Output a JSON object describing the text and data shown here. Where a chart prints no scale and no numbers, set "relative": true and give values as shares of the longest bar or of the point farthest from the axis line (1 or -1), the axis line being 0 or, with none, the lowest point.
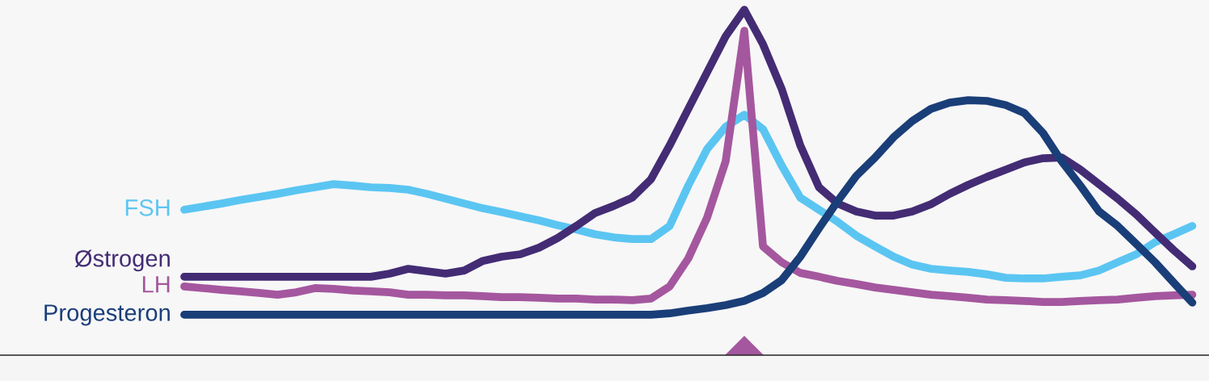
{
  "chart_data": {
    "type": "line",
    "relative": true,
    "legend": false,
    "marker": "none",
    "line_style": "solid",
    "categories": [
      null,
      null,
      null,
      null,
      null,
      null,
      null,
      null,
      null,
      null,
      null,
      null,
      null,
      null,
      null,
      null,
      null,
      null,
      null,
      null,
      null,
      null,
      null,
      null,
      null,
      null,
      null,
      null,
      null,
      null,
      null,
      null,
      null,
      null,
      null,
      null,
      null,
      null,
      null,
      null,
      null,
      null,
      null,
      null,
      null,
      null,
      null,
      null,
      null,
      null,
      null,
      null,
      null,
      null,
      null
    ],
    "series": [
      {
        "name": "FSH",
        "color": "#5bc5f2",
        "values": [
          0.421,
          0.43,
          0.439,
          0.449,
          0.458,
          0.467,
          0.477,
          0.486,
          0.495,
          0.491,
          0.486,
          0.484,
          0.479,
          0.467,
          0.453,
          0.439,
          0.425,
          0.414,
          0.402,
          0.39,
          0.376,
          0.364,
          0.35,
          0.341,
          0.336,
          0.336,
          0.374,
          0.491,
          0.596,
          0.661,
          0.696,
          0.654,
          0.549,
          0.456,
          0.421,
          0.386,
          0.346,
          0.315,
          0.285,
          0.262,
          0.25,
          0.245,
          0.241,
          0.234,
          0.224,
          0.222,
          0.222,
          0.227,
          0.231,
          0.245,
          0.269,
          0.292,
          0.327,
          0.35,
          0.374
        ]
      },
      {
        "name": "Østrogen",
        "color": "#432c74",
        "values": [
          0.227,
          0.227,
          0.227,
          0.227,
          0.227,
          0.227,
          0.227,
          0.227,
          0.227,
          0.227,
          0.227,
          0.236,
          0.25,
          0.243,
          0.236,
          0.245,
          0.273,
          0.285,
          0.292,
          0.311,
          0.339,
          0.374,
          0.411,
          0.432,
          0.456,
          0.509,
          0.607,
          0.713,
          0.818,
          0.923,
          1.0,
          0.9,
          0.771,
          0.607,
          0.486,
          0.439,
          0.416,
          0.404,
          0.404,
          0.416,
          0.437,
          0.467,
          0.493,
          0.516,
          0.537,
          0.558,
          0.57,
          0.572,
          0.537,
          0.495,
          0.453,
          0.407,
          0.355,
          0.304,
          0.257
        ]
      },
      {
        "name": "LH",
        "color": "#a4579e",
        "values": [
          0.199,
          0.194,
          0.189,
          0.185,
          0.18,
          0.175,
          0.182,
          0.194,
          0.192,
          0.187,
          0.185,
          0.182,
          0.175,
          0.175,
          0.173,
          0.173,
          0.171,
          0.168,
          0.168,
          0.166,
          0.164,
          0.164,
          0.161,
          0.161,
          0.159,
          0.164,
          0.199,
          0.28,
          0.397,
          0.561,
          0.939,
          0.315,
          0.269,
          0.238,
          0.227,
          0.215,
          0.206,
          0.196,
          0.189,
          0.182,
          0.175,
          0.171,
          0.166,
          0.161,
          0.159,
          0.157,
          0.154,
          0.154,
          0.157,
          0.159,
          0.161,
          0.166,
          0.171,
          0.173,
          0.175
        ]
      },
      {
        "name": "Progesteron",
        "color": "#1a3e78",
        "values": [
          0.117,
          0.117,
          0.117,
          0.117,
          0.117,
          0.117,
          0.117,
          0.117,
          0.117,
          0.117,
          0.117,
          0.117,
          0.117,
          0.117,
          0.117,
          0.117,
          0.117,
          0.117,
          0.117,
          0.117,
          0.117,
          0.117,
          0.117,
          0.117,
          0.117,
          0.117,
          0.121,
          0.129,
          0.136,
          0.145,
          0.157,
          0.18,
          0.217,
          0.285,
          0.367,
          0.446,
          0.519,
          0.572,
          0.631,
          0.678,
          0.713,
          0.731,
          0.738,
          0.736,
          0.724,
          0.701,
          0.643,
          0.561,
          0.491,
          0.416,
          0.374,
          0.322,
          0.269,
          0.21,
          0.152
        ]
      }
    ]
  }
}
